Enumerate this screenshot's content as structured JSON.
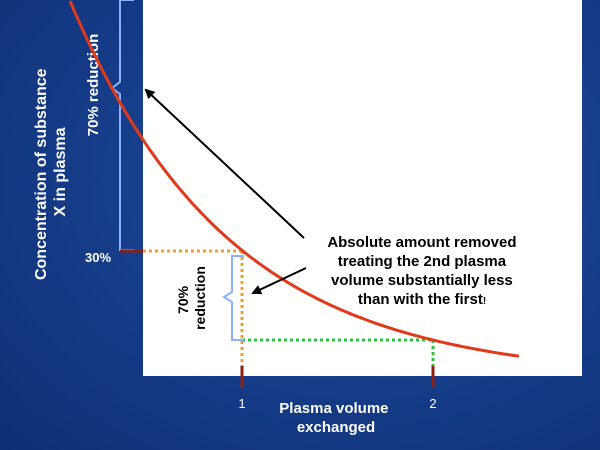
{
  "chart_data": {
    "type": "line",
    "title": "",
    "xlabel": "Plasma volume exchanged",
    "ylabel": "Concentration of substance X in plasma",
    "ylabel_lines": [
      "Concentration of substance",
      "X in plasma"
    ],
    "xlabel_lines": [
      "Plasma volume",
      "exchanged"
    ],
    "x_ticks": [
      "1",
      "2"
    ],
    "y_ticks": [
      "30%"
    ],
    "xlim": [
      0.0,
      2.45
    ],
    "ylim": [
      0.0,
      1.0
    ],
    "series": [
      {
        "color": "#e03a1a",
        "model": "exponential decay, C = exp(-1.2 * x)",
        "x": [
          0.1,
          0.25,
          0.5,
          0.75,
          1.0,
          1.25,
          1.5,
          1.75,
          2.0,
          2.25,
          2.45
        ],
        "y": [
          0.887,
          0.741,
          0.549,
          0.407,
          0.301,
          0.223,
          0.165,
          0.122,
          0.091,
          0.067,
          0.053
        ]
      }
    ],
    "reference_lines": [
      {
        "color": "#f0a020",
        "style": "dotted",
        "from_x": 0.0,
        "to_x": 1.0,
        "at_y": 0.3
      },
      {
        "color": "#f0a020",
        "style": "dotted",
        "at_x": 1.0,
        "from_y": 0.0,
        "to_y": 0.3
      },
      {
        "color": "#2fbf3f",
        "style": "dotted",
        "from_x": 1.0,
        "to_x": 2.0,
        "at_y": 0.091
      },
      {
        "color": "#2fbf3f",
        "style": "dotted",
        "at_x": 2.0,
        "from_y": 0.0,
        "to_y": 0.091
      }
    ],
    "annotations": {
      "first_reduction": "70% reduction",
      "second_reduction_lines": [
        "70%",
        "reduction"
      ],
      "callout_lines": [
        "Absolute amount removed",
        "treating the 2nd plasma",
        "volume substantially less",
        "than with the first"
      ],
      "callout_mark": "!"
    },
    "colors": {
      "background": "#173f8c",
      "plot_area": "#ffffff",
      "curve": "#e03a1a",
      "orange_dots": "#f0a020",
      "green_dots": "#2fbf3f",
      "brackets": "#8ab0ff",
      "tick_marks": "#8b2015",
      "text": "#ffffff",
      "callout_text": "#000000"
    },
    "grid": false,
    "legend": "none"
  }
}
